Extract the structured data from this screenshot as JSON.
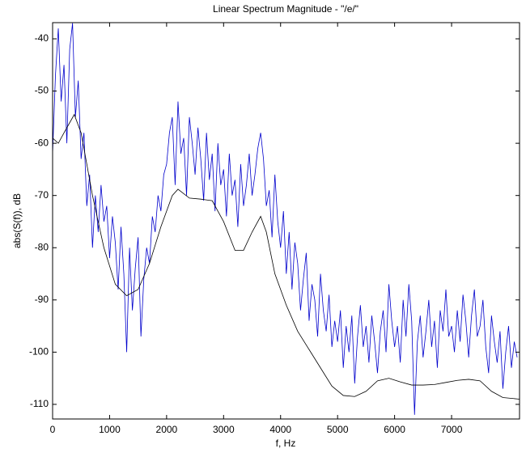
{
  "chart_data": {
    "type": "line",
    "title": "Linear Spectrum Magnitude - \"/e/\"",
    "xlabel": "f, Hz",
    "ylabel": "abs(S(f)), dB",
    "xlim": [
      0,
      8192
    ],
    "ylim": [
      -112.8,
      -36.9
    ],
    "xticks": [
      0,
      1000,
      2000,
      3000,
      4000,
      5000,
      6000,
      7000
    ],
    "yticks": [
      -110,
      -100,
      -90,
      -80,
      -70,
      -60,
      -50,
      -40
    ],
    "grid": false,
    "series": [
      {
        "color": "#0000cc",
        "x": [
          0,
          50,
          100,
          150,
          200,
          250,
          300,
          350,
          400,
          450,
          500,
          550,
          600,
          650,
          700,
          750,
          800,
          850,
          900,
          950,
          1000,
          1050,
          1100,
          1150,
          1200,
          1250,
          1300,
          1350,
          1400,
          1450,
          1500,
          1550,
          1600,
          1650,
          1700,
          1750,
          1800,
          1850,
          1900,
          1950,
          2000,
          2050,
          2100,
          2150,
          2200,
          2250,
          2300,
          2350,
          2400,
          2450,
          2500,
          2550,
          2600,
          2650,
          2700,
          2750,
          2800,
          2850,
          2900,
          2950,
          3000,
          3050,
          3100,
          3150,
          3200,
          3250,
          3300,
          3350,
          3400,
          3450,
          3500,
          3550,
          3600,
          3650,
          3700,
          3750,
          3800,
          3850,
          3900,
          3950,
          4000,
          4050,
          4100,
          4150,
          4200,
          4250,
          4300,
          4350,
          4400,
          4450,
          4500,
          4550,
          4600,
          4650,
          4700,
          4750,
          4800,
          4850,
          4900,
          4950,
          5000,
          5050,
          5100,
          5150,
          5200,
          5250,
          5300,
          5350,
          5400,
          5450,
          5500,
          5550,
          5600,
          5650,
          5700,
          5750,
          5800,
          5850,
          5900,
          5950,
          6000,
          6050,
          6100,
          6150,
          6200,
          6250,
          6300,
          6350,
          6400,
          6450,
          6500,
          6550,
          6600,
          6650,
          6700,
          6750,
          6800,
          6850,
          6900,
          6950,
          7000,
          7050,
          7100,
          7150,
          7200,
          7250,
          7300,
          7350,
          7400,
          7450,
          7500,
          7550,
          7600,
          7650,
          7700,
          7750,
          7800,
          7850,
          7900,
          7950,
          8000,
          8050,
          8100,
          8150
        ],
        "values": [
          -62,
          -47,
          -38,
          -52,
          -45,
          -60,
          -42,
          -37,
          -55,
          -48,
          -63,
          -58,
          -72,
          -66,
          -80,
          -70,
          -77,
          -68,
          -75,
          -72,
          -82,
          -74,
          -79,
          -88,
          -76,
          -85,
          -100,
          -80,
          -92,
          -84,
          -78,
          -97,
          -86,
          -80,
          -83,
          -74,
          -77,
          -70,
          -73,
          -66,
          -64,
          -58,
          -55,
          -68,
          -52,
          -62,
          -59,
          -70,
          -55,
          -60,
          -66,
          -57,
          -63,
          -71,
          -58,
          -67,
          -62,
          -73,
          -60,
          -68,
          -65,
          -74,
          -62,
          -70,
          -67,
          -76,
          -64,
          -72,
          -68,
          -62,
          -70,
          -66,
          -61,
          -58,
          -63,
          -72,
          -69,
          -78,
          -66,
          -75,
          -80,
          -73,
          -85,
          -77,
          -88,
          -79,
          -83,
          -92,
          -86,
          -81,
          -94,
          -87,
          -90,
          -97,
          -85,
          -92,
          -96,
          -89,
          -99,
          -94,
          -98,
          -92,
          -103,
          -95,
          -100,
          -93,
          -106,
          -97,
          -91,
          -99,
          -95,
          -102,
          -93,
          -98,
          -104,
          -96,
          -92,
          -100,
          -87,
          -94,
          -99,
          -95,
          -102,
          -90,
          -97,
          -87,
          -94,
          -112,
          -98,
          -93,
          -101,
          -96,
          -90,
          -99,
          -94,
          -103,
          -92,
          -96,
          -88,
          -97,
          -95,
          -100,
          -92,
          -98,
          -89,
          -94,
          -101,
          -93,
          -88,
          -97,
          -95,
          -90,
          -99,
          -104,
          -93,
          -98,
          -102,
          -96,
          -107,
          -100,
          -95,
          -103,
          -98,
          -101
        ]
      },
      {
        "color": "#000000",
        "x": [
          0,
          100,
          200,
          380,
          500,
          700,
          900,
          1100,
          1300,
          1500,
          1700,
          1900,
          2100,
          2200,
          2400,
          2600,
          2800,
          3000,
          3200,
          3350,
          3500,
          3650,
          3750,
          3900,
          4100,
          4300,
          4500,
          4700,
          4900,
          5100,
          5300,
          5500,
          5700,
          5900,
          6100,
          6300,
          6500,
          6700,
          6900,
          7100,
          7300,
          7500,
          7700,
          7900,
          8192
        ],
        "values": [
          -59,
          -60,
          -58,
          -54.5,
          -58,
          -70,
          -80,
          -87,
          -89.2,
          -88,
          -83,
          -76,
          -70,
          -68.8,
          -70.5,
          -70.7,
          -71,
          -75,
          -80.5,
          -80.5,
          -77,
          -74,
          -77,
          -85,
          -91,
          -96,
          -99.5,
          -103,
          -106.5,
          -108.3,
          -108.5,
          -107.5,
          -105.5,
          -105,
          -105.7,
          -106.3,
          -106.3,
          -106.2,
          -105.8,
          -105.4,
          -105.2,
          -105.5,
          -107.5,
          -108.7,
          -109
        ]
      }
    ]
  }
}
